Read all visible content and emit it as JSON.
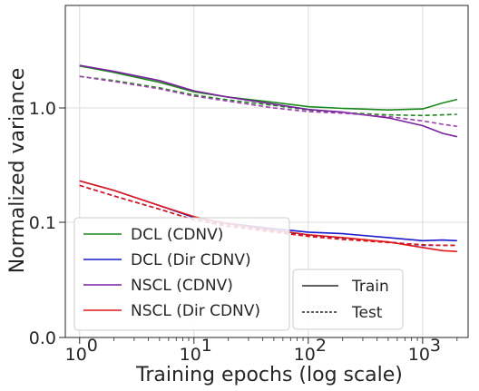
{
  "chart_data": {
    "type": "line",
    "xlabel": "Training epochs (log scale)",
    "ylabel": "Normalized variance",
    "x_scale": "log",
    "xlim": [
      0.75,
      2500
    ],
    "x_ticks": [
      1,
      10,
      100,
      1000
    ],
    "x_tick_labels": [
      "10",
      "10",
      "10",
      "10"
    ],
    "x_tick_exponents": [
      "0",
      "1",
      "2",
      "3"
    ],
    "y_tick_labels": [
      "0.0",
      "0.1",
      "1.0"
    ],
    "grid": true,
    "series": [
      {
        "name": "DCL (CDNV)",
        "split": "Train",
        "color": "#1a8a1a",
        "dash": "solid",
        "points": [
          [
            1,
            1.9
          ],
          [
            2,
            1.72
          ],
          [
            5,
            1.48
          ],
          [
            10,
            1.28
          ],
          [
            20,
            1.18
          ],
          [
            50,
            1.09
          ],
          [
            100,
            1.02
          ],
          [
            200,
            0.99
          ],
          [
            500,
            0.96
          ],
          [
            1000,
            0.98
          ],
          [
            1500,
            1.08
          ],
          [
            2000,
            1.14
          ]
        ]
      },
      {
        "name": "DCL (CDNV)",
        "split": "Test",
        "color": "#1a8a1a",
        "dash": "dashed",
        "points": [
          [
            1,
            1.62
          ],
          [
            2,
            1.52
          ],
          [
            5,
            1.36
          ],
          [
            10,
            1.22
          ],
          [
            20,
            1.13
          ],
          [
            50,
            1.04
          ],
          [
            100,
            0.96
          ],
          [
            200,
            0.91
          ],
          [
            500,
            0.87
          ],
          [
            1000,
            0.86
          ],
          [
            1500,
            0.87
          ],
          [
            2000,
            0.88
          ]
        ]
      },
      {
        "name": "NSCL (CDNV)",
        "split": "Train",
        "color": "#7a1fa0",
        "dash": "solid",
        "points": [
          [
            1,
            1.92
          ],
          [
            2,
            1.75
          ],
          [
            5,
            1.52
          ],
          [
            10,
            1.3
          ],
          [
            20,
            1.18
          ],
          [
            50,
            1.06
          ],
          [
            100,
            0.97
          ],
          [
            200,
            0.92
          ],
          [
            500,
            0.82
          ],
          [
            1000,
            0.7
          ],
          [
            1500,
            0.6
          ],
          [
            2000,
            0.56
          ]
        ]
      },
      {
        "name": "NSCL (CDNV)",
        "split": "Test",
        "color": "#a040b0",
        "dash": "dashed",
        "points": [
          [
            1,
            1.62
          ],
          [
            2,
            1.5
          ],
          [
            5,
            1.34
          ],
          [
            10,
            1.2
          ],
          [
            20,
            1.11
          ],
          [
            50,
            1.0
          ],
          [
            100,
            0.93
          ],
          [
            200,
            0.9
          ],
          [
            500,
            0.84
          ],
          [
            1000,
            0.77
          ],
          [
            1500,
            0.72
          ],
          [
            2000,
            0.69
          ]
        ]
      },
      {
        "name": "DCL (Dir CDNV)",
        "split": "Train",
        "color": "#1a1acc",
        "dash": "solid",
        "points": [
          [
            1,
            0.23
          ],
          [
            2,
            0.19
          ],
          [
            5,
            0.14
          ],
          [
            10,
            0.11
          ],
          [
            20,
            0.097
          ],
          [
            50,
            0.085
          ],
          [
            100,
            0.078
          ],
          [
            200,
            0.075
          ],
          [
            500,
            0.068
          ],
          [
            1000,
            0.063
          ],
          [
            1500,
            0.064
          ],
          [
            2000,
            0.063
          ]
        ]
      },
      {
        "name": "DCL (Dir CDNV)",
        "split": "Test",
        "color": "#1a1acc",
        "dash": "dashed",
        "points": [
          [
            1,
            0.21
          ],
          [
            2,
            0.17
          ],
          [
            5,
            0.13
          ],
          [
            10,
            0.105
          ],
          [
            20,
            0.094
          ],
          [
            50,
            0.08
          ],
          [
            100,
            0.072
          ],
          [
            200,
            0.067
          ],
          [
            500,
            0.061
          ],
          [
            1000,
            0.056
          ],
          [
            1500,
            0.056
          ],
          [
            2000,
            0.056
          ]
        ]
      },
      {
        "name": "NSCL (Dir CDNV)",
        "split": "Train",
        "color": "#e01818",
        "dash": "solid",
        "points": [
          [
            1,
            0.23
          ],
          [
            2,
            0.19
          ],
          [
            5,
            0.14
          ],
          [
            10,
            0.112
          ],
          [
            20,
            0.096
          ],
          [
            50,
            0.082
          ],
          [
            100,
            0.073
          ],
          [
            200,
            0.068
          ],
          [
            500,
            0.061
          ],
          [
            1000,
            0.053
          ],
          [
            1500,
            0.049
          ],
          [
            2000,
            0.048
          ]
        ]
      },
      {
        "name": "NSCL (Dir CDNV)",
        "split": "Test",
        "color": "#e01818",
        "dash": "dashed",
        "points": [
          [
            1,
            0.21
          ],
          [
            2,
            0.17
          ],
          [
            5,
            0.13
          ],
          [
            10,
            0.105
          ],
          [
            20,
            0.09
          ],
          [
            50,
            0.078
          ],
          [
            100,
            0.07
          ],
          [
            200,
            0.065
          ],
          [
            500,
            0.06
          ],
          [
            1000,
            0.057
          ],
          [
            1500,
            0.056
          ],
          [
            2000,
            0.056
          ]
        ]
      }
    ],
    "legend_series": {
      "placement": "lower-left",
      "entries": [
        {
          "label": "DCL (CDNV)",
          "color": "#1a8a1a"
        },
        {
          "label": "DCL (Dir CDNV)",
          "color": "#1a1acc"
        },
        {
          "label": "NSCL (CDNV)",
          "color": "#7a1fa0"
        },
        {
          "label": "NSCL (Dir CDNV)",
          "color": "#e01818"
        }
      ]
    },
    "legend_style": {
      "placement": "lower-right",
      "entries": [
        {
          "label": "Train",
          "dash": "solid"
        },
        {
          "label": "Test",
          "dash": "dashed"
        }
      ]
    }
  }
}
